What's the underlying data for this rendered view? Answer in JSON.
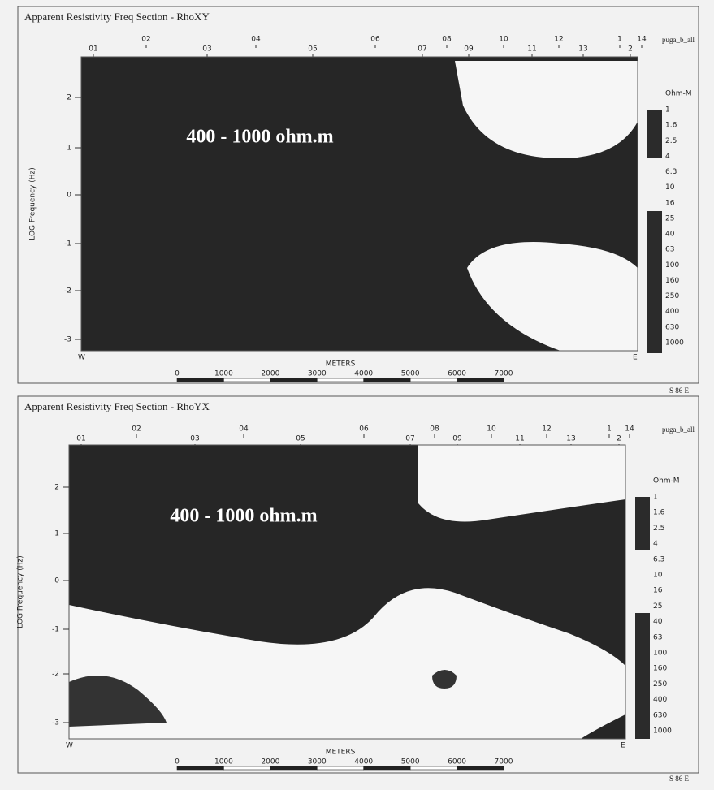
{
  "panels": [
    {
      "title": "Apparent Resistivity Freq Section - RhoXY",
      "dataset": "puga_b_all",
      "stations": [
        "01",
        "02",
        "03",
        "04",
        "05",
        "06",
        "07",
        "08",
        "09",
        "10",
        "11",
        "12",
        "13",
        "1",
        "2",
        "14"
      ],
      "y_axis_label": "LOG Frequency (Hz)",
      "y_ticks": [
        "2",
        "1",
        "0",
        "-1",
        "-2",
        "-3"
      ],
      "legend_title": "Ohm-M",
      "legend_labels": [
        "1",
        "1.6",
        "2.5",
        "4",
        "6.3",
        "10",
        "16",
        "25",
        "40",
        "63",
        "100",
        "160",
        "250",
        "400",
        "630",
        "1000"
      ],
      "annotation": "400 - 1000 ohm.m",
      "scale_title": "METERS",
      "scale_labels": [
        "0",
        "1000",
        "2000",
        "3000",
        "4000",
        "5000",
        "6000",
        "7000"
      ],
      "west": "W",
      "east": "E",
      "azimuth": "S 86 E"
    },
    {
      "title": "Apparent Resistivity Freq Section - RhoYX",
      "dataset": "puga_b_all",
      "stations": [
        "01",
        "02",
        "03",
        "04",
        "05",
        "06",
        "07",
        "08",
        "09",
        "10",
        "11",
        "12",
        "13",
        "1",
        "2",
        "14"
      ],
      "y_axis_label": "LOG Frequency (Hz)",
      "y_ticks": [
        "2",
        "1",
        "0",
        "-1",
        "-2",
        "-3"
      ],
      "legend_title": "Ohm-M",
      "legend_labels": [
        "1",
        "1.6",
        "2.5",
        "4",
        "6.3",
        "10",
        "16",
        "25",
        "40",
        "63",
        "100",
        "160",
        "250",
        "400",
        "630",
        "1000"
      ],
      "annotation": "400 - 1000 ohm.m",
      "scale_title": "METERS",
      "scale_labels": [
        "0",
        "1000",
        "2000",
        "3000",
        "4000",
        "5000",
        "6000",
        "7000"
      ],
      "west": "W",
      "east": "E",
      "azimuth": "S 86 E"
    }
  ]
}
